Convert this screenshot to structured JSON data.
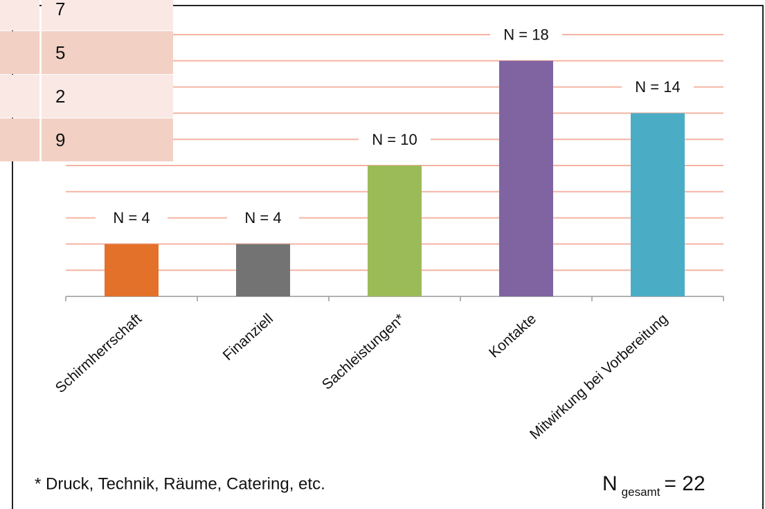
{
  "chart_data": {
    "type": "bar",
    "categories": [
      "Schirmherrschaft",
      "Finanziell",
      "Sachleistungen*",
      "Kontakte",
      "Mitwirkung bei Vorbereitung"
    ],
    "values": [
      4,
      4,
      10,
      18,
      14
    ],
    "value_labels": [
      "N = 4",
      "N = 4",
      "N = 10",
      "N = 18",
      "N = 14"
    ],
    "colors": [
      "#e3712a",
      "#737373",
      "#9bbb59",
      "#8064a2",
      "#4bacc6"
    ],
    "ylim": [
      0,
      20
    ],
    "yticks": [
      0,
      2,
      4,
      6,
      8,
      10,
      12,
      14,
      16,
      18,
      20
    ],
    "grid": true,
    "footnote": "* Druck, Technik, Räume, Catering, etc.",
    "total": {
      "symbol": "N",
      "subscript": "gesamt",
      "text": "= 22"
    }
  },
  "table": {
    "rows": [
      "7",
      "5",
      "2",
      "9"
    ]
  }
}
